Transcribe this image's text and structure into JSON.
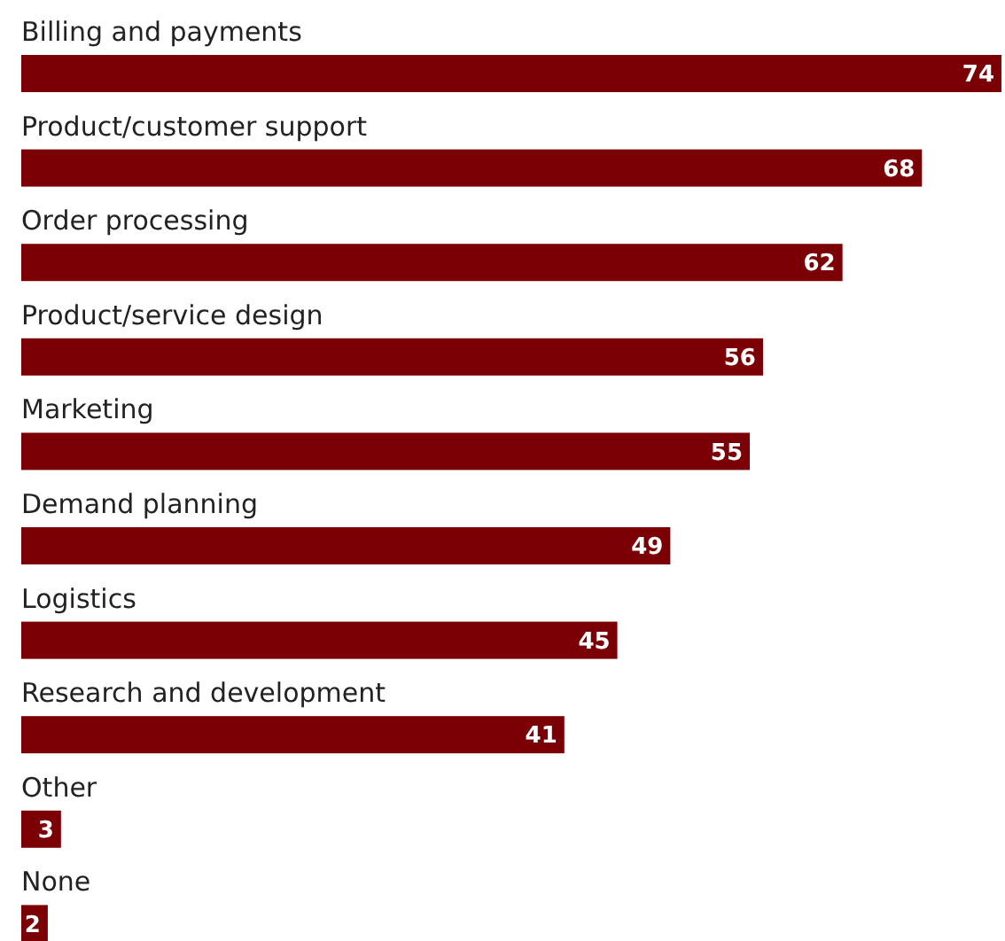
{
  "chart_data": {
    "type": "bar",
    "orientation": "horizontal",
    "categories": [
      "Billing and payments",
      "Product/customer support",
      "Order processing",
      "Product/service design",
      "Marketing",
      "Demand planning",
      "Logistics",
      "Research and development",
      "Other",
      "None"
    ],
    "values": [
      74,
      68,
      62,
      56,
      55,
      49,
      45,
      41,
      3,
      2
    ],
    "color": "#7a0006",
    "data_labels": true
  }
}
